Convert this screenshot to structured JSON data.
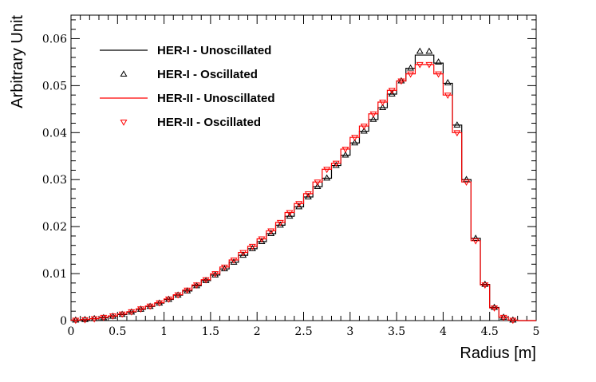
{
  "chart_data": {
    "type": "step",
    "title": "",
    "xlabel": "Radius [m]",
    "ylabel": "Arbitrary Unit",
    "xlim": [
      0,
      5
    ],
    "ylim": [
      0,
      0.065
    ],
    "bin_width": 0.1,
    "x_major_ticks": [
      {
        "value": 0,
        "label": "0"
      },
      {
        "value": 0.5,
        "label": "0.5"
      },
      {
        "value": 1,
        "label": "1"
      },
      {
        "value": 1.5,
        "label": "1.5"
      },
      {
        "value": 2,
        "label": "2"
      },
      {
        "value": 2.5,
        "label": "2.5"
      },
      {
        "value": 3,
        "label": "3"
      },
      {
        "value": 3.5,
        "label": "3.5"
      },
      {
        "value": 4,
        "label": "4"
      },
      {
        "value": 4.5,
        "label": "4.5"
      },
      {
        "value": 5,
        "label": "5"
      }
    ],
    "y_major_ticks": [
      {
        "value": 0,
        "label": "0"
      },
      {
        "value": 0.01,
        "label": "0.01"
      },
      {
        "value": 0.02,
        "label": "0.02"
      },
      {
        "value": 0.03,
        "label": "0.03"
      },
      {
        "value": 0.04,
        "label": "0.04"
      },
      {
        "value": 0.05,
        "label": "0.05"
      },
      {
        "value": 0.06,
        "label": "0.06"
      }
    ],
    "x_minor_step": 0.1,
    "y_minor_step": 0.002,
    "legend_position": "top-left",
    "series": [
      {
        "name": "HER-I - Unoscillated",
        "style": "line",
        "color": "#000000",
        "values": [
          0.0001,
          0.0002,
          0.0004,
          0.0006,
          0.0009,
          0.0013,
          0.0018,
          0.0024,
          0.003,
          0.0037,
          0.0045,
          0.0054,
          0.0063,
          0.0074,
          0.0085,
          0.0097,
          0.011,
          0.0124,
          0.0139,
          0.0153,
          0.0168,
          0.0185,
          0.0203,
          0.0222,
          0.0242,
          0.0263,
          0.0285,
          0.0303,
          0.033,
          0.0352,
          0.0378,
          0.0403,
          0.0428,
          0.0453,
          0.0482,
          0.051,
          0.0537,
          0.0565,
          0.0565,
          0.0548,
          0.0505,
          0.0416,
          0.03,
          0.0175,
          0.0077,
          0.0028,
          0.0007,
          0.0001,
          0,
          0
        ]
      },
      {
        "name": "HER-I - Oscillated",
        "style": "marker",
        "marker": "triangle-up",
        "color": "#000000",
        "values": [
          0.0001,
          0.0002,
          0.0004,
          0.0006,
          0.0009,
          0.0013,
          0.0018,
          0.0024,
          0.003,
          0.0037,
          0.0045,
          0.0054,
          0.0063,
          0.0074,
          0.0085,
          0.0097,
          0.011,
          0.0124,
          0.0139,
          0.0153,
          0.0168,
          0.0185,
          0.0203,
          0.0222,
          0.0242,
          0.0263,
          0.0285,
          0.0303,
          0.033,
          0.0352,
          0.0378,
          0.0403,
          0.0428,
          0.0453,
          0.0482,
          0.051,
          0.0537,
          0.0573,
          0.0573,
          0.055,
          0.0506,
          0.0416,
          0.03,
          0.0175,
          0.0077,
          0.0028,
          0.0007,
          0.0001,
          0,
          0
        ]
      },
      {
        "name": "HER-II - Unoscillated",
        "style": "line",
        "color": "#ff0000",
        "values": [
          0.0001,
          0.0002,
          0.0004,
          0.0007,
          0.001,
          0.0014,
          0.0019,
          0.0025,
          0.0031,
          0.0038,
          0.0046,
          0.0055,
          0.0065,
          0.0076,
          0.0087,
          0.01,
          0.0114,
          0.0129,
          0.0145,
          0.0158,
          0.0174,
          0.0191,
          0.0209,
          0.023,
          0.0249,
          0.027,
          0.0295,
          0.0322,
          0.0335,
          0.0365,
          0.039,
          0.0414,
          0.044,
          0.0465,
          0.049,
          0.051,
          0.0525,
          0.0545,
          0.0545,
          0.0525,
          0.048,
          0.04,
          0.0295,
          0.017,
          0.0076,
          0.0027,
          0.0007,
          0.0001,
          0,
          0
        ]
      },
      {
        "name": "HER-II - Oscillated",
        "style": "marker",
        "marker": "triangle-down",
        "color": "#ff0000",
        "values": [
          0.0001,
          0.0002,
          0.0004,
          0.0007,
          0.001,
          0.0014,
          0.0019,
          0.0025,
          0.0031,
          0.0038,
          0.0046,
          0.0055,
          0.0065,
          0.0076,
          0.0087,
          0.01,
          0.0114,
          0.0129,
          0.0145,
          0.0158,
          0.0174,
          0.0191,
          0.0209,
          0.023,
          0.0249,
          0.027,
          0.0295,
          0.0322,
          0.0335,
          0.0365,
          0.039,
          0.0414,
          0.044,
          0.0465,
          0.049,
          0.051,
          0.0525,
          0.0545,
          0.0545,
          0.0525,
          0.048,
          0.04,
          0.0295,
          0.017,
          0.0076,
          0.0027,
          0.0007,
          0.0001,
          0,
          0
        ]
      }
    ]
  }
}
